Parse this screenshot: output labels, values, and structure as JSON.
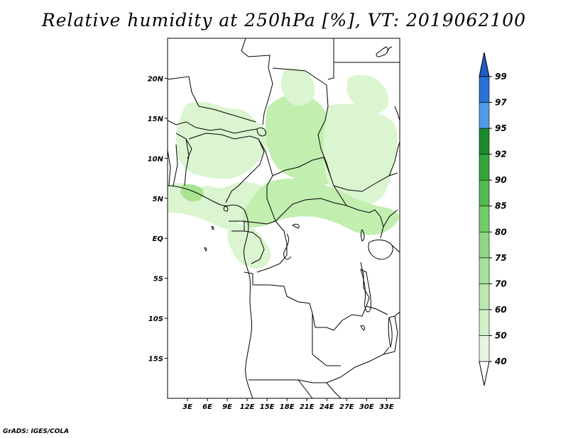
{
  "title": "Relative humidity at 250hPa [%], VT: 2019062100",
  "credit": "GrADS: IGES/COLA",
  "map": {
    "lat_labels": [
      {
        "lat": 20,
        "label": "20N"
      },
      {
        "lat": 15,
        "label": "15N"
      },
      {
        "lat": 10,
        "label": "10N"
      },
      {
        "lat": 5,
        "label": "5N"
      },
      {
        "lat": 0,
        "label": "EQ"
      },
      {
        "lat": -5,
        "label": "5S"
      },
      {
        "lat": -10,
        "label": "10S"
      },
      {
        "lat": -15,
        "label": "15S"
      }
    ],
    "lon_labels": [
      {
        "lon": 3,
        "label": "3E"
      },
      {
        "lon": 6,
        "label": "6E"
      },
      {
        "lon": 9,
        "label": "9E"
      },
      {
        "lon": 12,
        "label": "12E"
      },
      {
        "lon": 15,
        "label": "15E"
      },
      {
        "lon": 18,
        "label": "18E"
      },
      {
        "lon": 21,
        "label": "21E"
      },
      {
        "lon": 24,
        "label": "24E"
      },
      {
        "lon": 27,
        "label": "27E"
      },
      {
        "lon": 30,
        "label": "30E"
      },
      {
        "lon": 33,
        "label": "33E"
      }
    ],
    "lon_range": [
      0,
      35
    ],
    "lat_range": [
      -20,
      25
    ]
  },
  "legend": {
    "levels": [
      "40",
      "50",
      "60",
      "70",
      "75",
      "80",
      "85",
      "90",
      "92",
      "95",
      "97",
      "99"
    ],
    "colors": [
      "#ffffff",
      "#e6f5e1",
      "#d2f0c8",
      "#bde9b0",
      "#a6e09a",
      "#8fd885",
      "#72cc6c",
      "#53b953",
      "#34a43c",
      "#1a8a2a",
      "#4f9be8",
      "#2a72d6",
      "#1f5cc4"
    ]
  },
  "colors": {
    "coast": "#000000",
    "humid_light": "#daf5cf",
    "humid_mid": "#c2eeb0",
    "humid_dark": "#a9e392"
  }
}
